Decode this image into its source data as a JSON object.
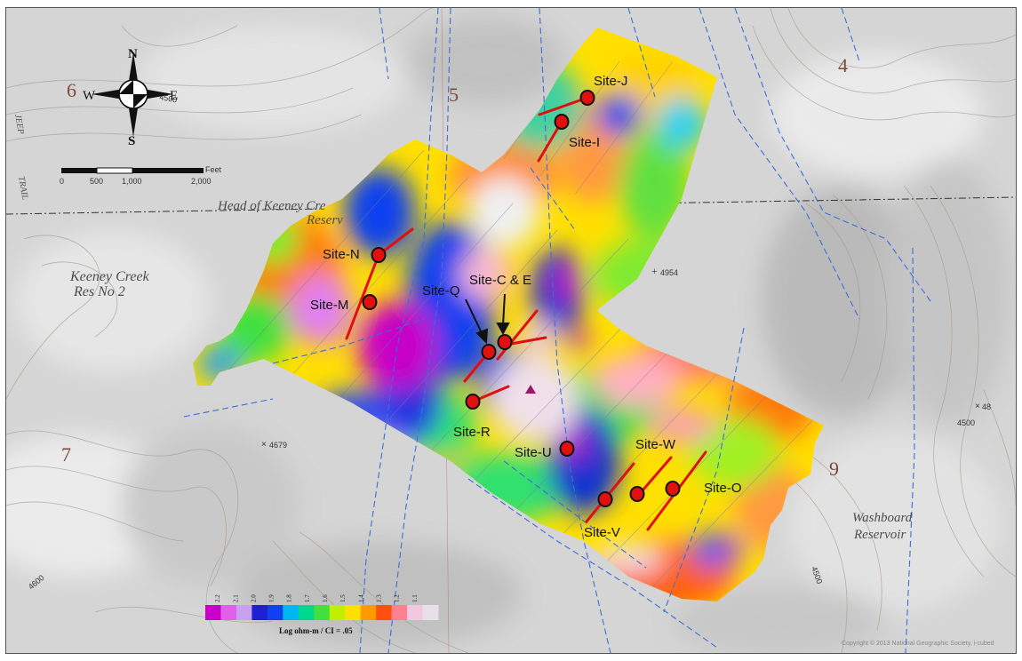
{
  "map": {
    "section_numbers": [
      "6",
      "5",
      "4",
      "7",
      "9"
    ],
    "place_labels": {
      "head_line1": "Head of Keeney Cre",
      "head_line2": "Reserv",
      "keeney_line1": "Keeney Creek",
      "keeney_line2": "Res No 2",
      "washboard_line1": "Washboard",
      "washboard_line2": "Reservoir",
      "trail": "TRAIL",
      "jeep": "JEEP"
    },
    "elevations": {
      "e4954": "4954",
      "e4679": "4679",
      "e4500_left": "4500",
      "e4500_top": "4500",
      "e4600": "4600",
      "e4500_bottom": "4500",
      "e48": "48"
    },
    "sites": [
      {
        "id": "site-j",
        "label": "Site-J"
      },
      {
        "id": "site-i",
        "label": "Site-I"
      },
      {
        "id": "site-n",
        "label": "Site-N"
      },
      {
        "id": "site-m",
        "label": "Site-M"
      },
      {
        "id": "site-q",
        "label": "Site-Q"
      },
      {
        "id": "site-ce",
        "label": "Site-C & E"
      },
      {
        "id": "site-r",
        "label": "Site-R"
      },
      {
        "id": "site-u",
        "label": "Site-U"
      },
      {
        "id": "site-w",
        "label": "Site-W"
      },
      {
        "id": "site-o",
        "label": "Site-O"
      },
      {
        "id": "site-v",
        "label": "Site-V"
      }
    ],
    "copyright": "Copyright © 2013 National Geographic Society, i-cubed"
  },
  "compass": {
    "north": "N",
    "south": "S",
    "east": "E",
    "west": "W"
  },
  "scalebar": {
    "unit": "Feet",
    "ticks": [
      "0",
      "500",
      "1,000",
      "2,000"
    ]
  },
  "legend": {
    "title": "Log ohm-m / CI = .05",
    "ticks": [
      "2.2",
      "2.1",
      "2.0",
      "1.9",
      "1.8",
      "1.7",
      "1.6",
      "1.5",
      "1.4",
      "1.3",
      "1.2",
      "1.1"
    ],
    "colors": [
      "#c800c8",
      "#e060e8",
      "#c8a0f0",
      "#2020d0",
      "#1040f0",
      "#00b8f0",
      "#00d890",
      "#40e040",
      "#c0f000",
      "#ffe000",
      "#ff9a00",
      "#ff5010",
      "#ff8090",
      "#f0c8e0",
      "#e8e0e8"
    ]
  }
}
